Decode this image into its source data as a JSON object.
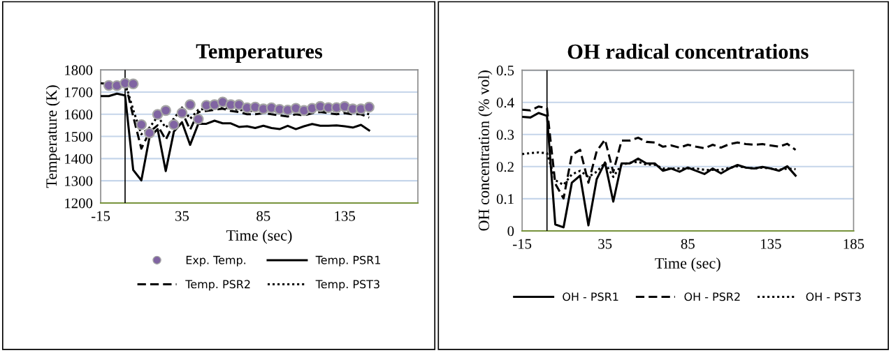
{
  "chart_data": [
    {
      "type": "line",
      "title": "Temperatures",
      "xlabel": "Time (sec)",
      "ylabel": "Temperature (K)",
      "x": [
        -15,
        -10,
        -5,
        0,
        5,
        10,
        15,
        20,
        25,
        30,
        35,
        40,
        45,
        50,
        55,
        60,
        65,
        70,
        75,
        80,
        85,
        90,
        95,
        100,
        105,
        110,
        115,
        120,
        125,
        130,
        135,
        140,
        145,
        150
      ],
      "xlim": [
        -15,
        180
      ],
      "xticks": [
        -15,
        35,
        85,
        135
      ],
      "ylim": [
        1200,
        1800
      ],
      "yticks": [
        1200,
        1300,
        1400,
        1500,
        1600,
        1700,
        1800
      ],
      "grid": "y",
      "legend": "bottom",
      "ref_lines": [
        {
          "axis": "x",
          "value": 0,
          "color": "#000000"
        }
      ],
      "series": [
        {
          "name": "Exp. Temp.",
          "type": "scatter",
          "marker": "circle",
          "color": "#8064a2",
          "x": [
            -10,
            -5,
            0,
            5,
            10,
            15,
            20,
            25,
            30,
            35,
            40,
            45,
            50,
            55,
            60,
            65,
            70,
            75,
            80,
            85,
            90,
            95,
            100,
            105,
            110,
            115,
            120,
            125,
            130,
            135,
            140,
            145,
            150
          ],
          "values": [
            1730,
            1729,
            1740,
            1737,
            1553,
            1515,
            1599,
            1617,
            1553,
            1606,
            1643,
            1578,
            1640,
            1643,
            1655,
            1643,
            1643,
            1629,
            1632,
            1624,
            1629,
            1622,
            1619,
            1627,
            1617,
            1627,
            1635,
            1630,
            1630,
            1635,
            1624,
            1624,
            1632
          ]
        },
        {
          "name": "Temp. PSR1",
          "color": "#000000",
          "line_style": "solid",
          "values": [
            1682,
            1682,
            1693,
            1685,
            1349,
            1302,
            1496,
            1533,
            1344,
            1522,
            1564,
            1462,
            1557,
            1557,
            1571,
            1559,
            1559,
            1543,
            1546,
            1538,
            1548,
            1538,
            1533,
            1548,
            1533,
            1546,
            1556,
            1548,
            1548,
            1550,
            1546,
            1540,
            1552,
            1527
          ]
        },
        {
          "name": "Temp. PSR2",
          "color": "#000000",
          "line_style": "dashed",
          "values": [
            1740,
            1735,
            null,
            1745,
            1590,
            1445,
            1520,
            1550,
            1485,
            1560,
            1610,
            1530,
            1610,
            1615,
            1620,
            1625,
            1615,
            1610,
            1600,
            1600,
            1605,
            1600,
            1595,
            1590,
            1600,
            1595,
            1605,
            1610,
            1605,
            1600,
            1605,
            1600,
            1600,
            1585
          ]
        },
        {
          "name": "Temp. PST3",
          "color": "#000000",
          "line_style": "dotted",
          "values": [
            null,
            null,
            null,
            1745,
            1620,
            1510,
            1540,
            1590,
            1540,
            1580,
            1630,
            1580,
            1620,
            1625,
            1625,
            1630,
            1625,
            1620,
            1615,
            1615,
            1615,
            1615,
            1610,
            1610,
            1615,
            1610,
            1615,
            1620,
            1615,
            1615,
            1615,
            1610,
            1610,
            1600
          ]
        }
      ]
    },
    {
      "type": "line",
      "title": "OH radical concentrations",
      "xlabel": "Time (sec)",
      "ylabel": "OH concentration (% vol)",
      "x": [
        -15,
        -10,
        -5,
        0,
        5,
        10,
        15,
        20,
        25,
        30,
        35,
        40,
        45,
        50,
        55,
        60,
        65,
        70,
        75,
        80,
        85,
        90,
        95,
        100,
        105,
        110,
        115,
        120,
        125,
        130,
        135,
        140,
        145,
        150
      ],
      "xlim": [
        -15,
        185
      ],
      "xticks": [
        -15,
        35,
        85,
        135,
        185
      ],
      "ylim": [
        0,
        0.5
      ],
      "yticks": [
        0,
        0.1,
        0.2,
        0.3,
        0.4,
        0.5
      ],
      "grid": "y",
      "legend": "bottom",
      "ref_lines": [
        {
          "axis": "x",
          "value": 0,
          "color": "#000000"
        }
      ],
      "series": [
        {
          "name": "OH - PSR1",
          "color": "#000000",
          "line_style": "solid",
          "values": [
            0.355,
            0.353,
            0.367,
            0.358,
            0.02,
            0.011,
            0.15,
            0.172,
            0.017,
            0.161,
            0.213,
            0.091,
            0.21,
            0.21,
            0.225,
            0.21,
            0.21,
            0.187,
            0.194,
            0.184,
            0.197,
            0.187,
            0.177,
            0.194,
            0.179,
            0.194,
            0.205,
            0.197,
            0.194,
            0.199,
            0.194,
            0.187,
            0.201,
            0.172
          ]
        },
        {
          "name": "OH - PSR2",
          "color": "#000000",
          "line_style": "dashed",
          "values": [
            0.377,
            0.375,
            0.387,
            0.382,
            0.147,
            0.101,
            0.237,
            0.252,
            0.15,
            0.248,
            0.284,
            0.183,
            0.281,
            0.281,
            0.29,
            0.277,
            0.275,
            0.262,
            0.266,
            0.259,
            0.268,
            0.262,
            0.257,
            0.268,
            0.259,
            0.27,
            0.275,
            0.27,
            0.268,
            0.27,
            0.266,
            0.262,
            0.271,
            0.252
          ]
        },
        {
          "name": "OH - PST3",
          "color": "#000000",
          "line_style": "dotted",
          "values": [
            0.239,
            0.242,
            0.244,
            0.242,
            0.158,
            0.143,
            0.176,
            0.187,
            0.168,
            0.184,
            0.212,
            0.168,
            0.206,
            0.212,
            0.215,
            0.206,
            0.206,
            0.194,
            0.194,
            0.194,
            0.194,
            0.194,
            0.19,
            0.19,
            0.19,
            0.196,
            0.201,
            0.197,
            0.194,
            0.197,
            0.194,
            0.19,
            0.194,
            0.192
          ]
        }
      ]
    }
  ]
}
